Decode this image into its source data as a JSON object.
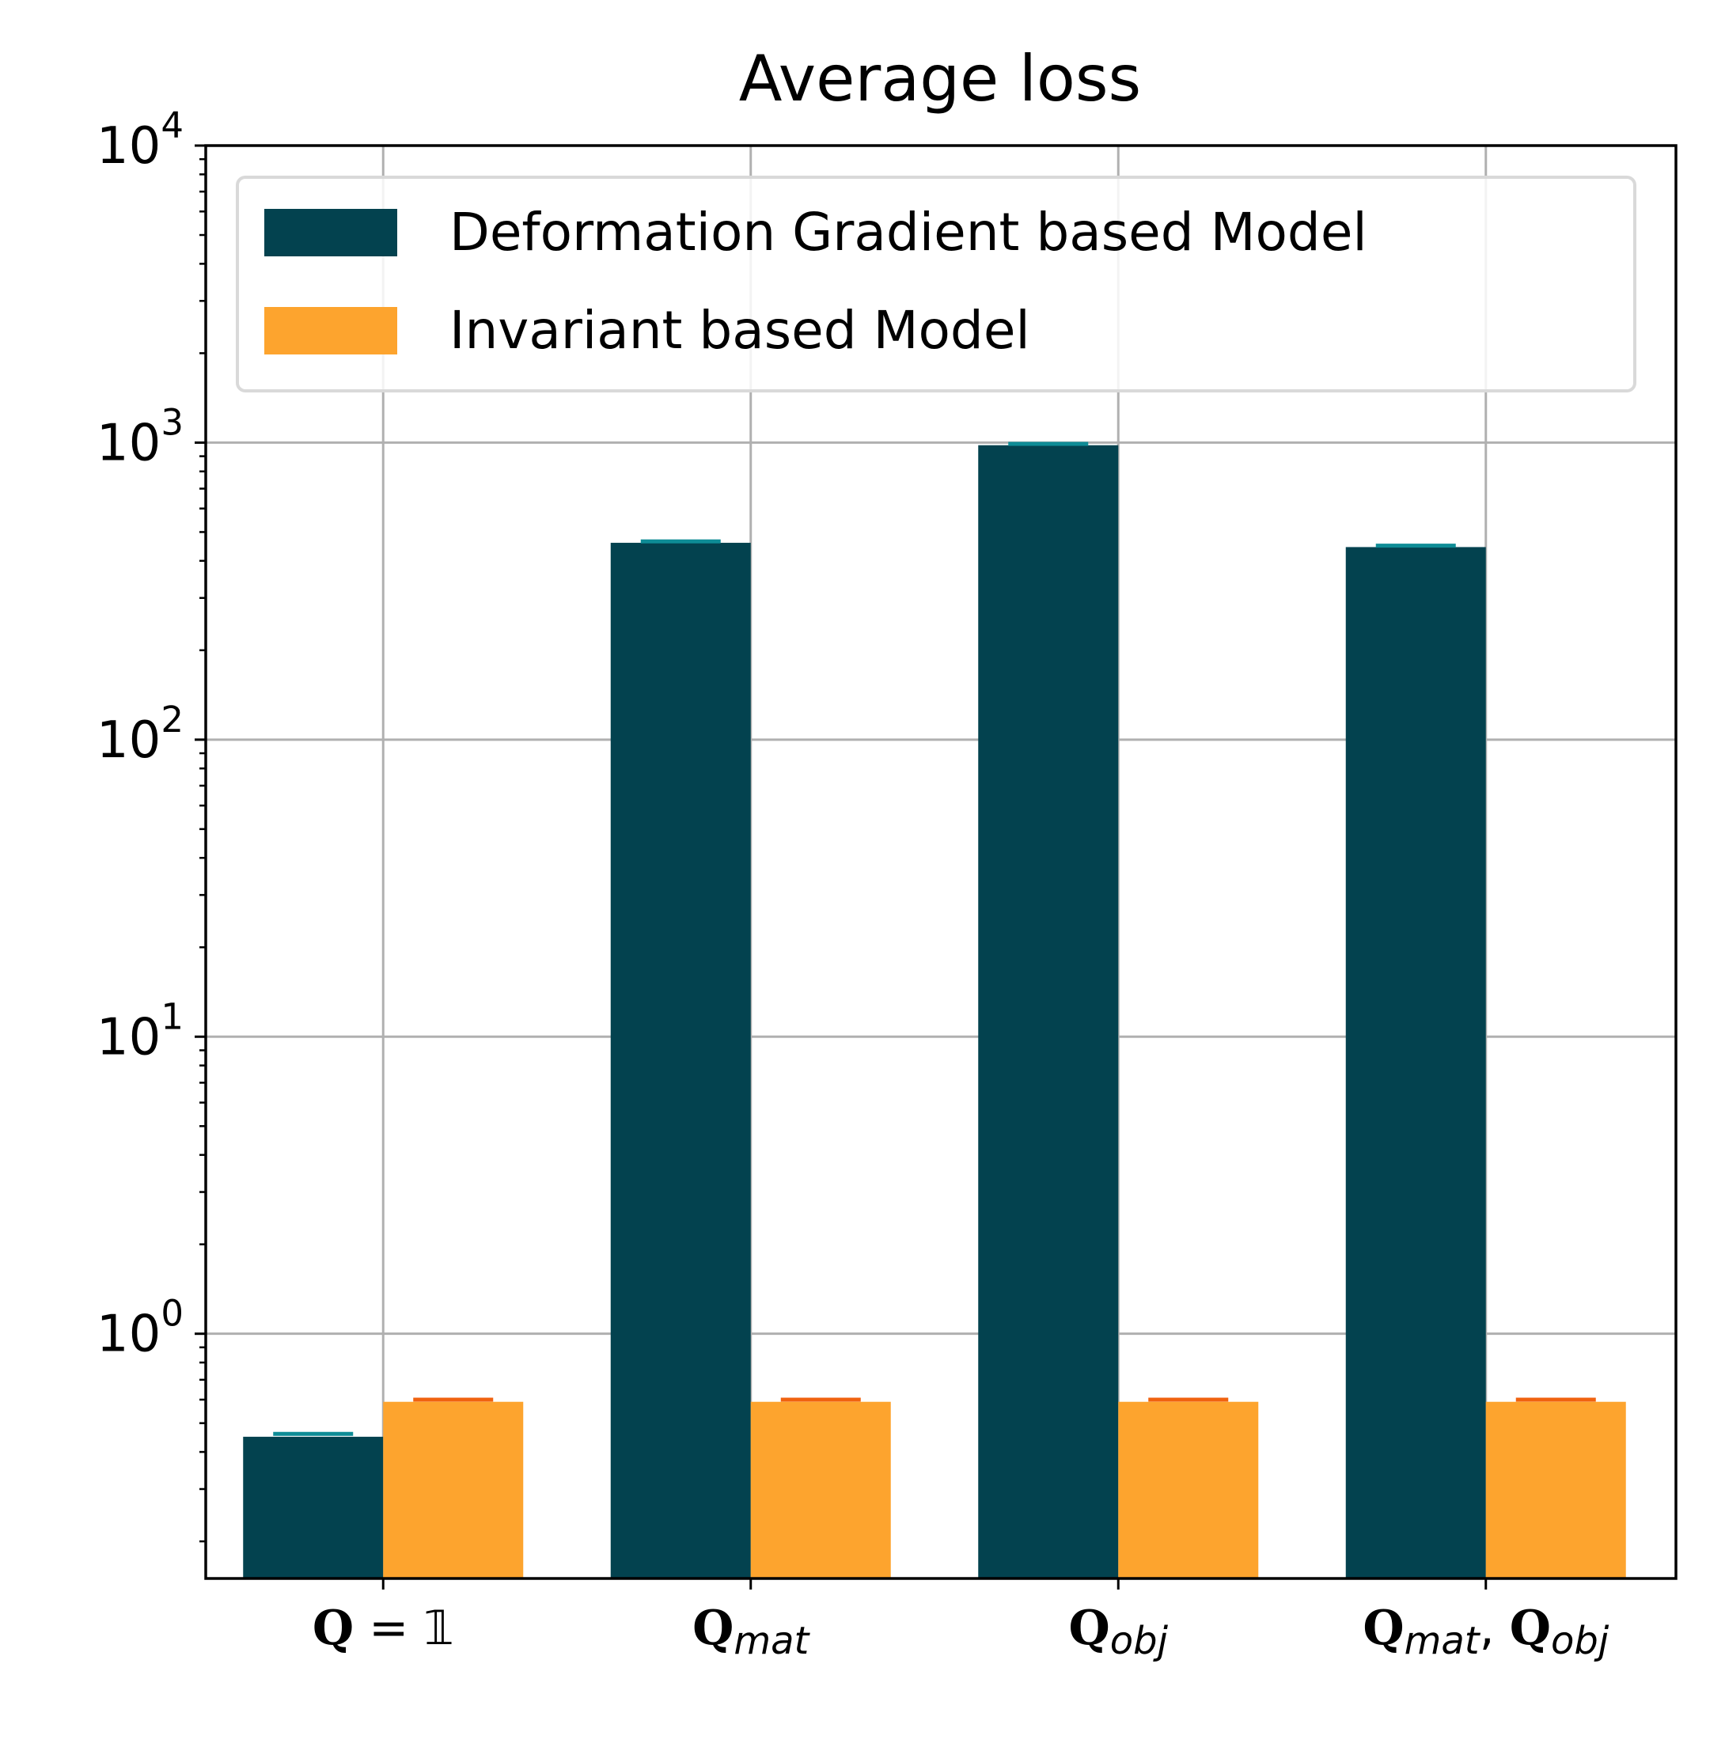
{
  "chart_data": {
    "type": "bar",
    "title": "Average loss",
    "xlabel": "",
    "ylabel": "",
    "yscale": "log",
    "ylim": [
      0.15,
      10000
    ],
    "grid": true,
    "legend_position": "top-right",
    "categories": [
      {
        "base": "Q",
        "sub": "",
        "suffix": " = 𝟙"
      },
      {
        "base": "Q",
        "sub": "mat",
        "suffix": ""
      },
      {
        "base": "Q",
        "sub": "obj",
        "suffix": ""
      },
      {
        "base": "Q",
        "sub": "mat",
        "suffix": ", ",
        "base2": "Q",
        "sub2": "obj"
      }
    ],
    "y_ticks": [
      {
        "base": "10",
        "exp": "0",
        "value": 1
      },
      {
        "base": "10",
        "exp": "1",
        "value": 10
      },
      {
        "base": "10",
        "exp": "2",
        "value": 100
      },
      {
        "base": "10",
        "exp": "3",
        "value": 1000
      },
      {
        "base": "10",
        "exp": "4",
        "value": 10000
      }
    ],
    "series": [
      {
        "name": "Deformation Gradient based Model",
        "color": "#03424f",
        "error_color": "#0e8c96",
        "values": [
          0.45,
          460,
          980,
          445
        ],
        "error_high": [
          0.46,
          465,
          990,
          450
        ]
      },
      {
        "name": "Invariant based Model",
        "color": "#fda42e",
        "error_color": "#f0620f",
        "values": [
          0.59,
          0.59,
          0.59,
          0.59
        ],
        "error_high": [
          0.6,
          0.6,
          0.6,
          0.6
        ]
      }
    ]
  }
}
